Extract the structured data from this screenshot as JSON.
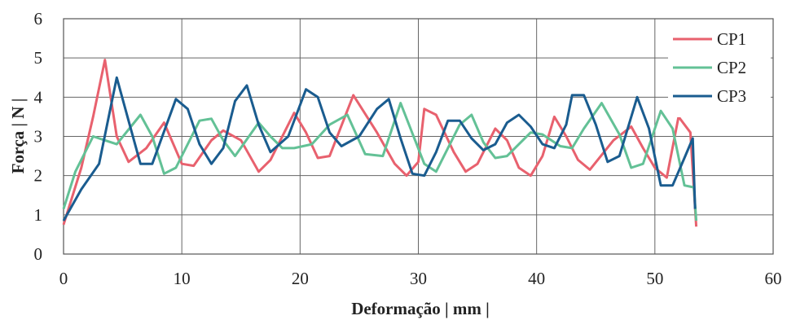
{
  "chart_data": {
    "type": "line",
    "title": "",
    "xlabel": "Deformação | mm |",
    "ylabel": "Força | N |",
    "xlim": [
      0,
      60
    ],
    "ylim": [
      0,
      6
    ],
    "xticks": [
      "0",
      "10",
      "20",
      "30",
      "40",
      "50",
      "60"
    ],
    "yticks": [
      "0",
      "1",
      "2",
      "3",
      "4",
      "5",
      "6"
    ],
    "grid": true,
    "legend_position": "top-right",
    "series": [
      {
        "name": "CP1",
        "color": "#e8616e",
        "points": [
          [
            0,
            0.75
          ],
          [
            1.5,
            2.2
          ],
          [
            2.5,
            3.5
          ],
          [
            3.5,
            4.95
          ],
          [
            4.5,
            3.0
          ],
          [
            5.5,
            2.35
          ],
          [
            7,
            2.7
          ],
          [
            8.5,
            3.35
          ],
          [
            10,
            2.3
          ],
          [
            11,
            2.25
          ],
          [
            12.5,
            2.9
          ],
          [
            13.5,
            3.15
          ],
          [
            15,
            2.9
          ],
          [
            16.5,
            2.1
          ],
          [
            17.5,
            2.4
          ],
          [
            19.5,
            3.6
          ],
          [
            20.5,
            3.1
          ],
          [
            21.5,
            2.45
          ],
          [
            22.5,
            2.5
          ],
          [
            24.5,
            4.05
          ],
          [
            26.5,
            3.1
          ],
          [
            28,
            2.3
          ],
          [
            29,
            2.0
          ],
          [
            30,
            2.35
          ],
          [
            30.5,
            3.7
          ],
          [
            31.5,
            3.55
          ],
          [
            33,
            2.6
          ],
          [
            34,
            2.1
          ],
          [
            35,
            2.3
          ],
          [
            36.5,
            3.2
          ],
          [
            37.5,
            2.9
          ],
          [
            38.5,
            2.2
          ],
          [
            39.5,
            2.0
          ],
          [
            40.5,
            2.5
          ],
          [
            41.5,
            3.5
          ],
          [
            42.5,
            3.0
          ],
          [
            43.5,
            2.4
          ],
          [
            44.5,
            2.15
          ],
          [
            46.5,
            2.9
          ],
          [
            48,
            3.25
          ],
          [
            49,
            2.7
          ],
          [
            50,
            2.2
          ],
          [
            51,
            1.95
          ],
          [
            52,
            3.5
          ],
          [
            53,
            3.1
          ],
          [
            53.5,
            0.7
          ]
        ]
      },
      {
        "name": "CP2",
        "color": "#63c196",
        "points": [
          [
            0,
            1.15
          ],
          [
            1,
            2.1
          ],
          [
            2.5,
            3.0
          ],
          [
            3.5,
            2.9
          ],
          [
            4.5,
            2.8
          ],
          [
            6.5,
            3.55
          ],
          [
            7.5,
            3.0
          ],
          [
            8.5,
            2.05
          ],
          [
            9.5,
            2.2
          ],
          [
            11.5,
            3.4
          ],
          [
            12.5,
            3.45
          ],
          [
            13.5,
            2.9
          ],
          [
            14.5,
            2.5
          ],
          [
            16.5,
            3.35
          ],
          [
            17.5,
            3.0
          ],
          [
            18.5,
            2.7
          ],
          [
            19.5,
            2.7
          ],
          [
            21,
            2.8
          ],
          [
            22.5,
            3.3
          ],
          [
            24,
            3.55
          ],
          [
            25.5,
            2.55
          ],
          [
            27,
            2.5
          ],
          [
            28.5,
            3.85
          ],
          [
            30.5,
            2.3
          ],
          [
            31.5,
            2.1
          ],
          [
            33.5,
            3.3
          ],
          [
            34.5,
            3.55
          ],
          [
            35.5,
            2.85
          ],
          [
            36.5,
            2.45
          ],
          [
            37.5,
            2.5
          ],
          [
            39.5,
            3.1
          ],
          [
            40.5,
            3.05
          ],
          [
            42,
            2.75
          ],
          [
            43,
            2.7
          ],
          [
            44,
            3.2
          ],
          [
            45.5,
            3.85
          ],
          [
            47,
            3.05
          ],
          [
            48,
            2.2
          ],
          [
            49,
            2.3
          ],
          [
            50.5,
            3.65
          ],
          [
            51.5,
            3.2
          ],
          [
            52.5,
            1.75
          ],
          [
            53.3,
            1.7
          ],
          [
            53.5,
            0.85
          ]
        ]
      },
      {
        "name": "CP3",
        "color": "#1a5c8f",
        "points": [
          [
            0,
            0.85
          ],
          [
            1.5,
            1.65
          ],
          [
            3,
            2.3
          ],
          [
            4.5,
            4.5
          ],
          [
            5.5,
            3.4
          ],
          [
            6.5,
            2.3
          ],
          [
            7.5,
            2.3
          ],
          [
            9.5,
            3.95
          ],
          [
            10.5,
            3.7
          ],
          [
            11.5,
            2.8
          ],
          [
            12.5,
            2.3
          ],
          [
            13.5,
            2.7
          ],
          [
            14.5,
            3.9
          ],
          [
            15.5,
            4.3
          ],
          [
            16.5,
            3.3
          ],
          [
            17.5,
            2.6
          ],
          [
            19,
            3.0
          ],
          [
            20.5,
            4.2
          ],
          [
            21.5,
            4.0
          ],
          [
            22.5,
            3.1
          ],
          [
            23.5,
            2.75
          ],
          [
            25,
            3.0
          ],
          [
            26.5,
            3.7
          ],
          [
            27.5,
            3.95
          ],
          [
            28.5,
            2.95
          ],
          [
            29.5,
            2.05
          ],
          [
            30.5,
            2.0
          ],
          [
            31.5,
            2.6
          ],
          [
            32.5,
            3.4
          ],
          [
            33.5,
            3.4
          ],
          [
            34.5,
            2.95
          ],
          [
            35.5,
            2.65
          ],
          [
            36.5,
            2.8
          ],
          [
            37.5,
            3.35
          ],
          [
            38.5,
            3.55
          ],
          [
            39.5,
            3.25
          ],
          [
            40.5,
            2.8
          ],
          [
            41.5,
            2.7
          ],
          [
            42.5,
            3.3
          ],
          [
            43,
            4.05
          ],
          [
            44,
            4.05
          ],
          [
            45,
            3.3
          ],
          [
            46,
            2.35
          ],
          [
            47,
            2.5
          ],
          [
            48.5,
            4.0
          ],
          [
            49.5,
            3.2
          ],
          [
            50.5,
            1.75
          ],
          [
            51.5,
            1.75
          ],
          [
            52.5,
            2.45
          ],
          [
            53.2,
            2.95
          ],
          [
            53.4,
            1.15
          ]
        ]
      }
    ]
  }
}
